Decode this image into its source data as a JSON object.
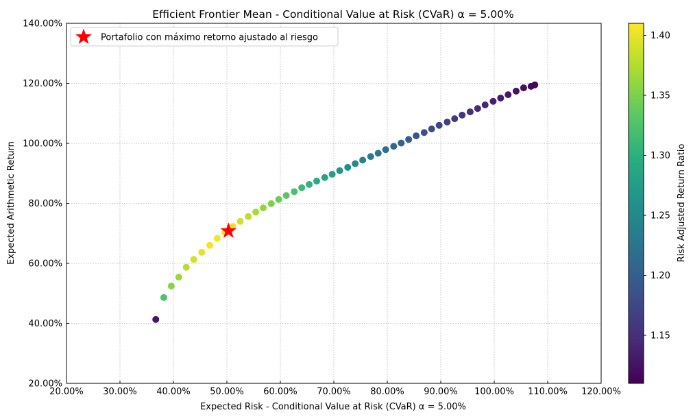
{
  "chart_data": {
    "type": "scatter",
    "title": "Efficient Frontier Mean - Conditional Value at Risk (CVaR) α = 5.00%",
    "xlabel": "Expected Risk - Conditional Value at Risk (CVaR) α = 5.00%",
    "ylabel": "Expected Arithmetic Return",
    "xlim": [
      20,
      120
    ],
    "ylim": [
      20,
      140
    ],
    "x_ticks": [
      "20.00%",
      "30.00%",
      "40.00%",
      "50.00%",
      "60.00%",
      "70.00%",
      "80.00%",
      "90.00%",
      "100.00%",
      "110.00%",
      "120.00%"
    ],
    "y_ticks": [
      "20.00%",
      "40.00%",
      "60.00%",
      "80.00%",
      "100.00%",
      "120.00%",
      "140.00%"
    ],
    "grid": true,
    "legend_position": "top-left",
    "legend": [
      "Portafolio con máximo retorno ajustado al riesgo"
    ],
    "colorbar": {
      "label": "Risk Adjusted Return Ratio",
      "range": [
        1.11,
        1.41
      ],
      "ticks": [
        "1.15",
        "1.20",
        "1.25",
        "1.30",
        "1.35",
        "1.40"
      ],
      "colormap": "viridis"
    },
    "series": [
      {
        "marker": "circle",
        "x": [
          36.7,
          38.2,
          39.6,
          41.0,
          42.4,
          43.8,
          45.3,
          46.8,
          48.2,
          49.6,
          51.1,
          52.5,
          54.0,
          55.4,
          56.8,
          58.3,
          59.7,
          61.1,
          62.6,
          64.0,
          65.4,
          66.8,
          68.3,
          69.7,
          71.1,
          72.6,
          74.0,
          75.4,
          76.9,
          78.3,
          79.7,
          81.2,
          82.6,
          84.0,
          85.4,
          86.9,
          88.3,
          89.7,
          91.2,
          92.6,
          94.0,
          95.5,
          96.9,
          98.3,
          99.8,
          101.2,
          102.6,
          104.1,
          105.5,
          106.9,
          107.6
        ],
        "y": [
          41.3,
          48.6,
          52.4,
          55.4,
          58.7,
          61.3,
          63.7,
          66.0,
          68.3,
          70.3,
          72.3,
          74.0,
          75.6,
          77.1,
          78.5,
          79.9,
          81.3,
          82.6,
          83.9,
          85.2,
          86.3,
          87.4,
          88.6,
          89.7,
          90.9,
          92.0,
          93.2,
          94.4,
          95.6,
          96.7,
          97.9,
          99.0,
          100.1,
          101.3,
          102.5,
          103.6,
          104.8,
          106.0,
          107.1,
          108.2,
          109.4,
          110.5,
          111.6,
          112.8,
          114.0,
          115.1,
          116.2,
          117.4,
          118.5,
          119.0,
          119.5
        ],
        "ratio": [
          1.128,
          1.325,
          1.355,
          1.365,
          1.378,
          1.39,
          1.398,
          1.403,
          1.406,
          1.405,
          1.398,
          1.389,
          1.38,
          1.37,
          1.36,
          1.35,
          1.34,
          1.331,
          1.322,
          1.313,
          1.304,
          1.295,
          1.286,
          1.277,
          1.268,
          1.259,
          1.25,
          1.242,
          1.234,
          1.226,
          1.218,
          1.211,
          1.204,
          1.197,
          1.19,
          1.184,
          1.178,
          1.172,
          1.166,
          1.161,
          1.156,
          1.151,
          1.146,
          1.141,
          1.137,
          1.133,
          1.129,
          1.125,
          1.121,
          1.117,
          1.114
        ]
      }
    ],
    "highlight": {
      "name": "Portafolio con máximo retorno ajustado al riesgo",
      "marker": "star",
      "color": "#ff0000",
      "x": 50.3,
      "y": 70.8
    }
  }
}
